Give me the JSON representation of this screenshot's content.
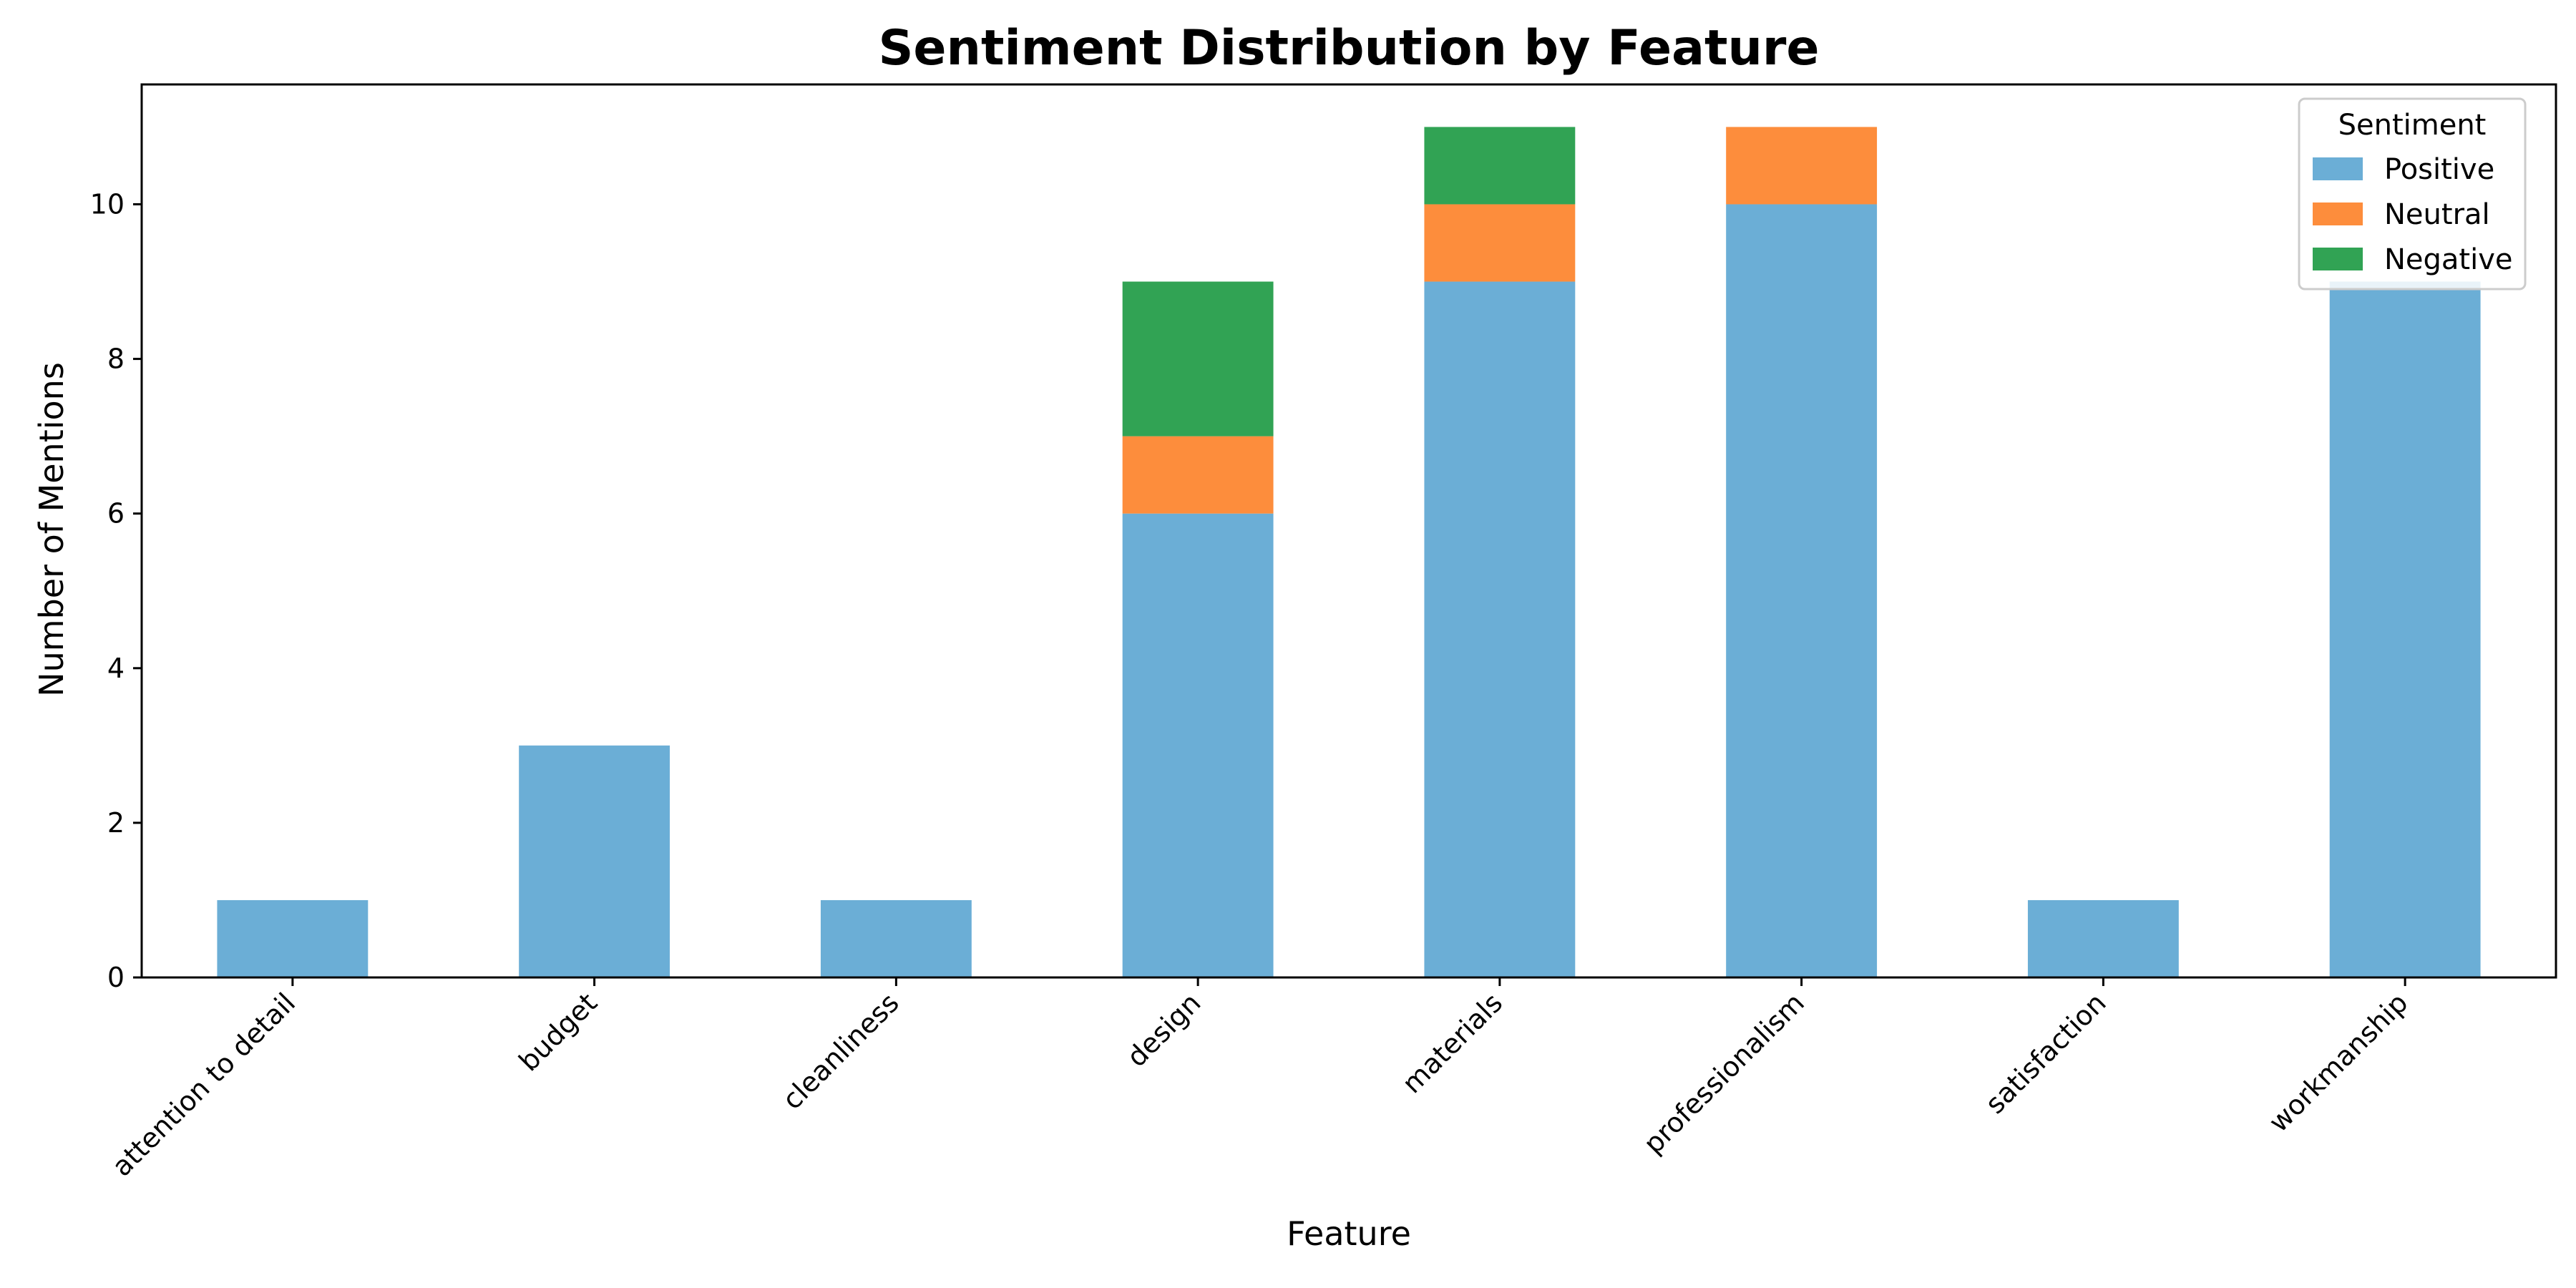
{
  "chart_data": {
    "type": "bar",
    "stacked": true,
    "title": "Sentiment Distribution by Feature",
    "xlabel": "Feature",
    "ylabel": "Number of Mentions",
    "ylim": [
      0,
      11.55
    ],
    "yticks": [
      0,
      2,
      4,
      6,
      8,
      10
    ],
    "grid": false,
    "legend": {
      "title": "Sentiment",
      "placement": "top-right"
    },
    "categories": [
      "attention to detail",
      "budget",
      "cleanliness",
      "design",
      "materials",
      "professionalism",
      "satisfaction",
      "workmanship"
    ],
    "series": [
      {
        "name": "Positive",
        "color": "#6baed6",
        "values": [
          1,
          3,
          1,
          6,
          9,
          10,
          1,
          9
        ]
      },
      {
        "name": "Neutral",
        "color": "#fd8d3c",
        "values": [
          0,
          0,
          0,
          1,
          1,
          1,
          0,
          0
        ]
      },
      {
        "name": "Negative",
        "color": "#31a354",
        "values": [
          0,
          0,
          0,
          2,
          1,
          0,
          0,
          0
        ]
      }
    ]
  }
}
